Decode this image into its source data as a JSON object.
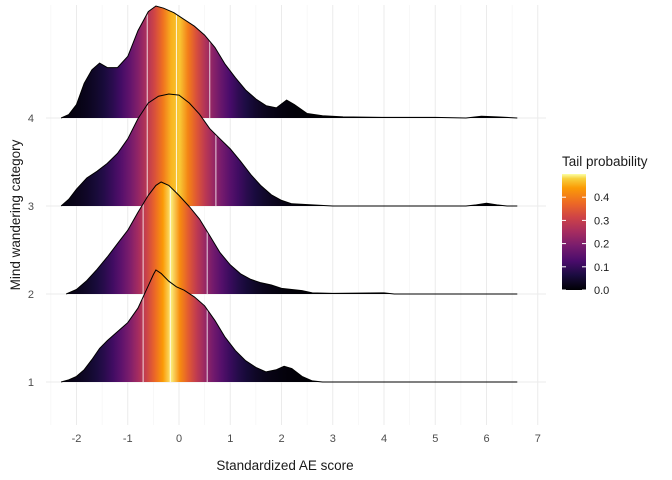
{
  "chart_data": {
    "type": "ridgeline",
    "xlabel": "Standardized AE score",
    "ylabel": "Mind wandering category",
    "xlim": [
      -2.6,
      7.2
    ],
    "x_ticks": [
      -2,
      -1,
      0,
      1,
      2,
      3,
      4,
      5,
      6,
      7
    ],
    "x_tick_labels": [
      "-2",
      "-1",
      "0",
      "1",
      "2",
      "3",
      "4",
      "5",
      "6",
      "7"
    ],
    "categories": [
      "1",
      "2",
      "3",
      "4"
    ],
    "grid": true,
    "fill": {
      "variable": "Tail probability",
      "palette": "inferno",
      "range": [
        0,
        0.5
      ],
      "breaks": [
        0.0,
        0.1,
        0.2,
        0.3,
        0.4
      ],
      "break_labels": [
        "0.0",
        "0.1",
        "0.2",
        "0.3",
        "0.4"
      ]
    },
    "legend_position": "right",
    "series": [
      {
        "category": "1",
        "median": -0.17,
        "quartiles": [
          -0.7,
          0.55
        ],
        "density": [
          [
            -2.3,
            0
          ],
          [
            -2.15,
            0.02
          ],
          [
            -2.0,
            0.05
          ],
          [
            -1.85,
            0.11
          ],
          [
            -1.7,
            0.2
          ],
          [
            -1.55,
            0.3
          ],
          [
            -1.4,
            0.37
          ],
          [
            -1.2,
            0.45
          ],
          [
            -1.0,
            0.53
          ],
          [
            -0.8,
            0.66
          ],
          [
            -0.6,
            0.86
          ],
          [
            -0.5,
            0.96
          ],
          [
            -0.45,
            1.0
          ],
          [
            -0.35,
            0.97
          ],
          [
            -0.2,
            0.9
          ],
          [
            -0.05,
            0.85
          ],
          [
            0.1,
            0.82
          ],
          [
            0.3,
            0.76
          ],
          [
            0.5,
            0.68
          ],
          [
            0.7,
            0.55
          ],
          [
            0.9,
            0.4
          ],
          [
            1.1,
            0.28
          ],
          [
            1.3,
            0.19
          ],
          [
            1.5,
            0.13
          ],
          [
            1.7,
            0.09
          ],
          [
            1.9,
            0.11
          ],
          [
            2.05,
            0.14
          ],
          [
            2.2,
            0.12
          ],
          [
            2.4,
            0.05
          ],
          [
            2.6,
            0.01
          ],
          [
            2.8,
            0.0
          ],
          [
            6.6,
            0.0
          ]
        ]
      },
      {
        "category": "2",
        "median": -0.17,
        "quartiles": [
          -0.7,
          0.55
        ],
        "density": [
          [
            -2.2,
            0
          ],
          [
            -2.0,
            0.04
          ],
          [
            -1.8,
            0.12
          ],
          [
            -1.6,
            0.22
          ],
          [
            -1.4,
            0.33
          ],
          [
            -1.2,
            0.45
          ],
          [
            -1.0,
            0.57
          ],
          [
            -0.8,
            0.73
          ],
          [
            -0.6,
            0.88
          ],
          [
            -0.45,
            0.97
          ],
          [
            -0.35,
            1.0
          ],
          [
            -0.2,
            0.97
          ],
          [
            0.0,
            0.88
          ],
          [
            0.2,
            0.78
          ],
          [
            0.4,
            0.67
          ],
          [
            0.6,
            0.52
          ],
          [
            0.8,
            0.37
          ],
          [
            1.0,
            0.26
          ],
          [
            1.2,
            0.18
          ],
          [
            1.4,
            0.13
          ],
          [
            1.6,
            0.1
          ],
          [
            1.8,
            0.08
          ],
          [
            2.0,
            0.05
          ],
          [
            2.2,
            0.04
          ],
          [
            2.4,
            0.03
          ],
          [
            2.6,
            0.01
          ],
          [
            3.0,
            0.005
          ],
          [
            4.0,
            0.01
          ],
          [
            4.2,
            0.0
          ],
          [
            6.6,
            0.0
          ]
        ]
      },
      {
        "category": "3",
        "median": -0.05,
        "quartiles": [
          -0.62,
          0.72
        ],
        "density": [
          [
            -2.3,
            0
          ],
          [
            -2.15,
            0.06
          ],
          [
            -2.0,
            0.15
          ],
          [
            -1.8,
            0.25
          ],
          [
            -1.6,
            0.31
          ],
          [
            -1.4,
            0.38
          ],
          [
            -1.2,
            0.47
          ],
          [
            -1.0,
            0.6
          ],
          [
            -0.8,
            0.78
          ],
          [
            -0.6,
            0.92
          ],
          [
            -0.4,
            0.98
          ],
          [
            -0.2,
            1.0
          ],
          [
            0.0,
            0.99
          ],
          [
            0.2,
            0.92
          ],
          [
            0.4,
            0.82
          ],
          [
            0.6,
            0.69
          ],
          [
            0.8,
            0.6
          ],
          [
            1.0,
            0.51
          ],
          [
            1.2,
            0.4
          ],
          [
            1.4,
            0.28
          ],
          [
            1.6,
            0.18
          ],
          [
            1.8,
            0.1
          ],
          [
            2.0,
            0.05
          ],
          [
            2.2,
            0.02
          ],
          [
            2.6,
            0.01
          ],
          [
            3.0,
            0.0
          ],
          [
            5.6,
            0.0
          ],
          [
            5.8,
            0.01
          ],
          [
            6.0,
            0.025
          ],
          [
            6.2,
            0.01
          ],
          [
            6.4,
            0.0
          ],
          [
            6.6,
            0.0
          ]
        ]
      },
      {
        "category": "4",
        "median": -0.05,
        "quartiles": [
          -0.62,
          0.6
        ],
        "density": [
          [
            -2.3,
            0
          ],
          [
            -2.15,
            0.03
          ],
          [
            -2.0,
            0.12
          ],
          [
            -1.85,
            0.31
          ],
          [
            -1.7,
            0.43
          ],
          [
            -1.55,
            0.49
          ],
          [
            -1.4,
            0.45
          ],
          [
            -1.2,
            0.45
          ],
          [
            -1.0,
            0.55
          ],
          [
            -0.8,
            0.78
          ],
          [
            -0.6,
            0.95
          ],
          [
            -0.45,
            1.0
          ],
          [
            -0.3,
            0.98
          ],
          [
            -0.1,
            0.94
          ],
          [
            0.1,
            0.88
          ],
          [
            0.3,
            0.82
          ],
          [
            0.5,
            0.74
          ],
          [
            0.7,
            0.63
          ],
          [
            0.9,
            0.48
          ],
          [
            1.1,
            0.36
          ],
          [
            1.3,
            0.25
          ],
          [
            1.5,
            0.17
          ],
          [
            1.7,
            0.11
          ],
          [
            1.9,
            0.09
          ],
          [
            2.1,
            0.16
          ],
          [
            2.25,
            0.12
          ],
          [
            2.5,
            0.04
          ],
          [
            2.8,
            0.02
          ],
          [
            3.2,
            0.01
          ],
          [
            4.0,
            0.005
          ],
          [
            5.0,
            0.005
          ],
          [
            5.6,
            0.0
          ],
          [
            5.9,
            0.015
          ],
          [
            6.2,
            0.01
          ],
          [
            6.6,
            0.0
          ]
        ]
      }
    ]
  }
}
